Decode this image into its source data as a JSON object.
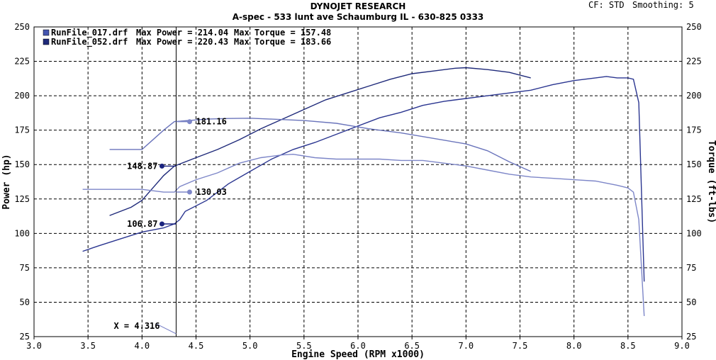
{
  "header": {
    "title": "DYNOJET RESEARCH",
    "subtitle": "A-spec - 533 lunt ave Schaumburg IL - 630-825 0333",
    "cf_label": "CF: STD",
    "smoothing_label": "Smoothing: 5"
  },
  "chart_data": {
    "type": "line",
    "xlabel": "Engine Speed (RPM x1000)",
    "ylabel_left": "Power (hp)",
    "ylabel_right": "Torque (ft-lbs)",
    "xlim": [
      3.0,
      9.0
    ],
    "ylim": [
      25,
      250
    ],
    "x_ticks": [
      "3.0",
      "3.5",
      "4.0",
      "4.5",
      "5.0",
      "5.5",
      "6.0",
      "6.5",
      "7.0",
      "7.5",
      "8.0",
      "8.5",
      "9.0"
    ],
    "y_ticks": [
      "25",
      "50",
      "75",
      "100",
      "125",
      "150",
      "175",
      "200",
      "225",
      "250"
    ],
    "grid": true,
    "legend_position": "top-left",
    "legend": [
      {
        "file": "RunFile_017.drf",
        "max_power_text": "Max Power = 214.04",
        "max_torque_text": "Max Torque = 157.48",
        "color": "#4455b0"
      },
      {
        "file": "RunFile_052.drf",
        "max_power_text": "Max Power = 220.43",
        "max_torque_text": "Max Torque = 183.66",
        "color": "#1f2a7a"
      }
    ],
    "series": [
      {
        "role": "power",
        "run": "RunFile_017.drf",
        "color": "#2a3590",
        "points": [
          [
            3.45,
            87
          ],
          [
            3.6,
            91
          ],
          [
            3.8,
            96
          ],
          [
            4.0,
            101
          ],
          [
            4.2,
            104
          ],
          [
            4.3,
            106.9
          ],
          [
            4.35,
            110
          ],
          [
            4.4,
            116
          ],
          [
            4.6,
            124
          ],
          [
            4.8,
            136
          ],
          [
            5.0,
            145
          ],
          [
            5.2,
            154
          ],
          [
            5.4,
            161
          ],
          [
            5.6,
            166
          ],
          [
            5.8,
            172
          ],
          [
            6.0,
            178
          ],
          [
            6.2,
            184
          ],
          [
            6.4,
            188
          ],
          [
            6.6,
            193
          ],
          [
            6.8,
            196
          ],
          [
            7.0,
            198
          ],
          [
            7.2,
            200
          ],
          [
            7.4,
            202
          ],
          [
            7.6,
            204
          ],
          [
            7.8,
            208
          ],
          [
            8.0,
            211
          ],
          [
            8.2,
            213
          ],
          [
            8.3,
            214
          ],
          [
            8.4,
            213
          ],
          [
            8.5,
            213
          ],
          [
            8.55,
            212
          ],
          [
            8.6,
            195
          ],
          [
            8.65,
            65
          ]
        ]
      },
      {
        "role": "power",
        "run": "RunFile_052.drf",
        "color": "#1f2a7a",
        "points": [
          [
            3.7,
            113
          ],
          [
            3.9,
            119
          ],
          [
            4.0,
            124
          ],
          [
            4.1,
            133
          ],
          [
            4.2,
            142
          ],
          [
            4.3,
            148.9
          ],
          [
            4.5,
            155
          ],
          [
            4.7,
            161
          ],
          [
            4.9,
            168
          ],
          [
            5.1,
            176
          ],
          [
            5.3,
            183
          ],
          [
            5.5,
            190
          ],
          [
            5.7,
            197
          ],
          [
            5.9,
            202
          ],
          [
            6.1,
            207
          ],
          [
            6.3,
            212
          ],
          [
            6.5,
            216
          ],
          [
            6.7,
            218
          ],
          [
            6.9,
            220
          ],
          [
            7.0,
            220.4
          ],
          [
            7.2,
            219
          ],
          [
            7.4,
            217
          ],
          [
            7.6,
            213
          ]
        ]
      },
      {
        "role": "torque",
        "run": "RunFile_017.drf",
        "color": "#7d86c8",
        "points": [
          [
            3.45,
            132
          ],
          [
            3.7,
            132
          ],
          [
            4.0,
            132
          ],
          [
            4.2,
            130
          ],
          [
            4.3,
            130.0
          ],
          [
            4.35,
            134
          ],
          [
            4.5,
            139
          ],
          [
            4.7,
            144
          ],
          [
            4.9,
            151
          ],
          [
            5.1,
            155
          ],
          [
            5.3,
            157
          ],
          [
            5.4,
            157.5
          ],
          [
            5.6,
            155
          ],
          [
            5.8,
            154
          ],
          [
            6.0,
            154
          ],
          [
            6.2,
            154
          ],
          [
            6.4,
            153
          ],
          [
            6.6,
            153
          ],
          [
            6.8,
            151
          ],
          [
            7.0,
            149
          ],
          [
            7.2,
            146
          ],
          [
            7.4,
            143
          ],
          [
            7.6,
            141
          ],
          [
            7.8,
            140
          ],
          [
            8.0,
            139
          ],
          [
            8.2,
            138
          ],
          [
            8.4,
            135
          ],
          [
            8.5,
            133
          ],
          [
            8.55,
            130
          ],
          [
            8.6,
            110
          ],
          [
            8.65,
            40
          ]
        ]
      },
      {
        "role": "torque",
        "run": "RunFile_052.drf",
        "color": "#6a74bb",
        "points": [
          [
            3.7,
            161
          ],
          [
            4.0,
            161
          ],
          [
            4.1,
            168
          ],
          [
            4.2,
            175
          ],
          [
            4.3,
            181.2
          ],
          [
            4.6,
            183
          ],
          [
            4.8,
            183.5
          ],
          [
            5.0,
            183.7
          ],
          [
            5.2,
            183
          ],
          [
            5.5,
            182
          ],
          [
            5.8,
            180
          ],
          [
            6.1,
            176
          ],
          [
            6.4,
            173
          ],
          [
            6.7,
            169
          ],
          [
            7.0,
            165
          ],
          [
            7.2,
            160
          ],
          [
            7.4,
            152
          ],
          [
            7.6,
            145
          ]
        ]
      }
    ],
    "cursor": {
      "label": "X = 4.316",
      "x": 4.316
    },
    "markers": [
      {
        "label": "148.87",
        "value": 148.87,
        "color": "#1a237e",
        "side": "left"
      },
      {
        "label": "106.87",
        "value": 106.87,
        "color": "#1a237e",
        "side": "left"
      },
      {
        "label": "181.16",
        "value": 181.16,
        "color": "#7d86c8",
        "side": "right"
      },
      {
        "label": "130.03",
        "value": 130.03,
        "color": "#7d86c8",
        "side": "right"
      }
    ]
  }
}
